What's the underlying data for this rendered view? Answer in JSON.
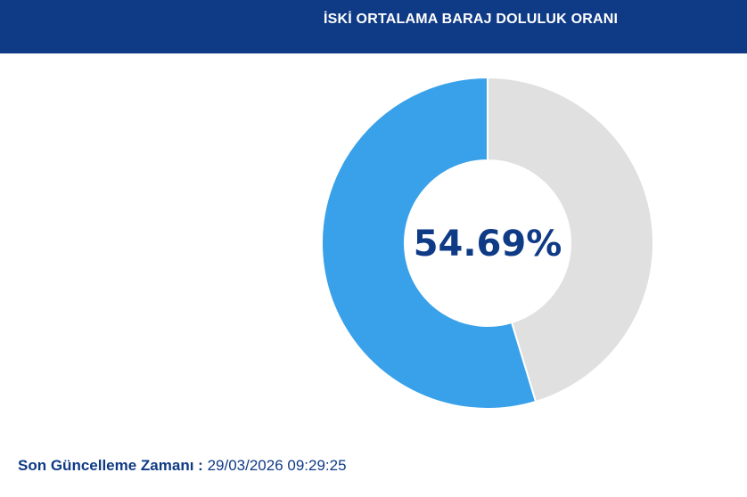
{
  "header": {
    "title": "İSKİ ORTALAMA BARAJ DOLULUK ORANI"
  },
  "chart_data": {
    "type": "pie",
    "center_label": "54.69%",
    "slices": [
      {
        "label": "",
        "value": 54.69,
        "color": "#38a1ea"
      },
      {
        "label": "",
        "value": 45.31,
        "color": "#e0e0e0"
      }
    ]
  },
  "footer": {
    "label": "Son Güncelleme Zamanı :",
    "timestamp": "29/03/2026 09:29:25"
  },
  "colors": {
    "header_bg": "#0f3a86",
    "accent_text": "#0f3a86",
    "filled": "#38a1ea",
    "empty": "#e0e0e0"
  }
}
